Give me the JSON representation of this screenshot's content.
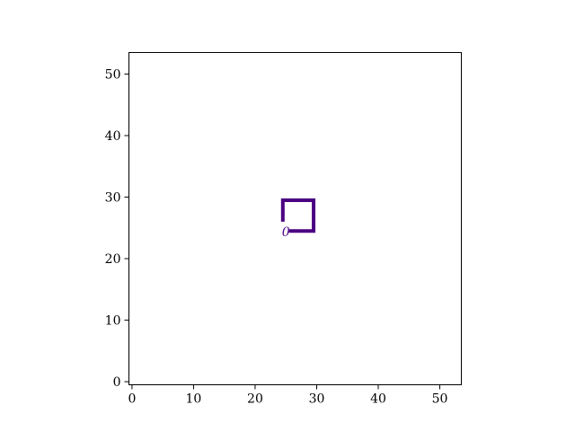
{
  "chart_data": {
    "type": "line",
    "title": "",
    "xlabel": "",
    "ylabel": "",
    "xlim": [
      -0.5,
      53.5
    ],
    "ylim": [
      -0.5,
      53.5
    ],
    "xticks": [
      0,
      10,
      20,
      30,
      40,
      50
    ],
    "yticks": [
      0,
      10,
      20,
      30,
      40,
      50
    ],
    "grid": false,
    "series": [
      {
        "color": "#4b0082",
        "x": [
          24.5,
          24.5,
          29.5,
          29.5,
          25.5
        ],
        "y": [
          26,
          29.5,
          29.5,
          24.5,
          24.5
        ]
      }
    ],
    "annotations": [
      {
        "text": "0",
        "x": 25,
        "y": 24.5,
        "color": "#4b0082"
      }
    ]
  }
}
